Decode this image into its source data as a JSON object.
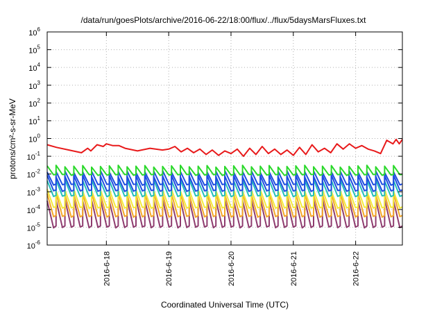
{
  "chart_data": {
    "type": "line",
    "title": "/data/run/goesPlots/archive/2016-06-22/18:00/flux/../flux/5daysMarsFluxes.txt",
    "xlabel": "Coordinated Universal Time (UTC)",
    "ylabel": "protons/cm²-s-sr-MeV",
    "yscale": "log",
    "ylim": [
      1e-06,
      1000000.0
    ],
    "xlim": [
      -0.95,
      4.75
    ],
    "x_ticks": [
      {
        "label": "2016-6-18",
        "value": 0
      },
      {
        "label": "2016-6-19",
        "value": 1
      },
      {
        "label": "2016-6-20",
        "value": 2
      },
      {
        "label": "2016-6-21",
        "value": 3
      },
      {
        "label": "2016-6-22",
        "value": 4
      }
    ],
    "y_ticks": [
      {
        "base": "10",
        "exp": "-6",
        "value": -6
      },
      {
        "base": "10",
        "exp": "-5",
        "value": -5
      },
      {
        "base": "10",
        "exp": "-4",
        "value": -4
      },
      {
        "base": "10",
        "exp": "-3",
        "value": -3
      },
      {
        "base": "10",
        "exp": "-2",
        "value": -2
      },
      {
        "base": "10",
        "exp": "-1",
        "value": -1
      },
      {
        "base": "10",
        "exp": "0",
        "value": 0
      },
      {
        "base": "10",
        "exp": "1",
        "value": 1
      },
      {
        "base": "10",
        "exp": "2",
        "value": 2
      },
      {
        "base": "10",
        "exp": "3",
        "value": 3
      },
      {
        "base": "10",
        "exp": "4",
        "value": 4
      },
      {
        "base": "10",
        "exp": "5",
        "value": 5
      },
      {
        "base": "10",
        "exp": "6",
        "value": 6
      }
    ],
    "grid": true,
    "colors": {
      "red": "#e8191a",
      "green": "#2ad82a",
      "blue": "#1e4de0",
      "cyan": "#23c0b8",
      "yellow": "#f2ea3a",
      "orange": "#f3a72a",
      "purple": "#8e3b6e"
    },
    "series": [
      {
        "color": "#e8191a",
        "x": [
          -0.95,
          -0.8,
          -0.6,
          -0.4,
          -0.3,
          -0.25,
          -0.15,
          -0.05,
          0,
          0.1,
          0.2,
          0.3,
          0.5,
          0.7,
          0.9,
          1,
          1.1,
          1.2,
          1.3,
          1.4,
          1.5,
          1.6,
          1.7,
          1.8,
          1.9,
          2,
          2.1,
          2.2,
          2.3,
          2.4,
          2.5,
          2.6,
          2.7,
          2.8,
          2.9,
          3,
          3.1,
          3.2,
          3.3,
          3.4,
          3.5,
          3.6,
          3.7,
          3.8,
          3.9,
          4,
          4.1,
          4.2,
          4.3,
          4.4,
          4.5,
          4.6,
          4.65,
          4.7,
          4.75
        ],
        "y": [
          -0.35,
          -0.5,
          -0.65,
          -0.8,
          -0.55,
          -0.7,
          -0.35,
          -0.45,
          -0.3,
          -0.4,
          -0.4,
          -0.55,
          -0.7,
          -0.55,
          -0.65,
          -0.6,
          -0.45,
          -0.75,
          -0.55,
          -0.8,
          -0.6,
          -0.9,
          -0.65,
          -0.95,
          -0.7,
          -0.85,
          -0.6,
          -1.0,
          -0.55,
          -0.9,
          -0.45,
          -0.85,
          -0.6,
          -0.9,
          -0.65,
          -0.95,
          -0.5,
          -0.9,
          -0.35,
          -0.75,
          -0.55,
          -0.8,
          -0.3,
          -0.6,
          -0.3,
          -0.55,
          -0.4,
          -0.6,
          -0.7,
          -0.85,
          -0.1,
          -0.3,
          -0.05,
          -0.3,
          -0.05
        ]
      },
      {
        "color": "#2ad82a",
        "x": [],
        "y": [],
        "sawtooth": {
          "hi": -1.55,
          "lo": -2.05,
          "cycles": 40
        }
      },
      {
        "color": "#1e4de0",
        "x": [],
        "y": [],
        "sawtooth": {
          "hi": -1.85,
          "lo": -2.6,
          "cycles": 40
        }
      },
      {
        "color": "#1e4de0",
        "x": [],
        "y": [],
        "sawtooth": {
          "hi": -2.1,
          "lo": -2.95,
          "cycles": 40
        }
      },
      {
        "color": "#23c0b8",
        "x": [],
        "y": [],
        "sawtooth": {
          "hi": -2.35,
          "lo": -3.25,
          "cycles": 40
        }
      },
      {
        "color": "#f2ea3a",
        "x": [],
        "y": [],
        "sawtooth": {
          "hi": -2.9,
          "lo": -3.9,
          "cycles": 40
        }
      },
      {
        "color": "#f3a72a",
        "x": [],
        "y": [],
        "sawtooth": {
          "hi": -3.1,
          "lo": -4.4,
          "cycles": 40
        }
      },
      {
        "color": "#8e3b6e",
        "x": [],
        "y": [],
        "sawtooth": {
          "hi": -3.45,
          "lo": -5.0,
          "cycles": 40
        }
      }
    ]
  }
}
